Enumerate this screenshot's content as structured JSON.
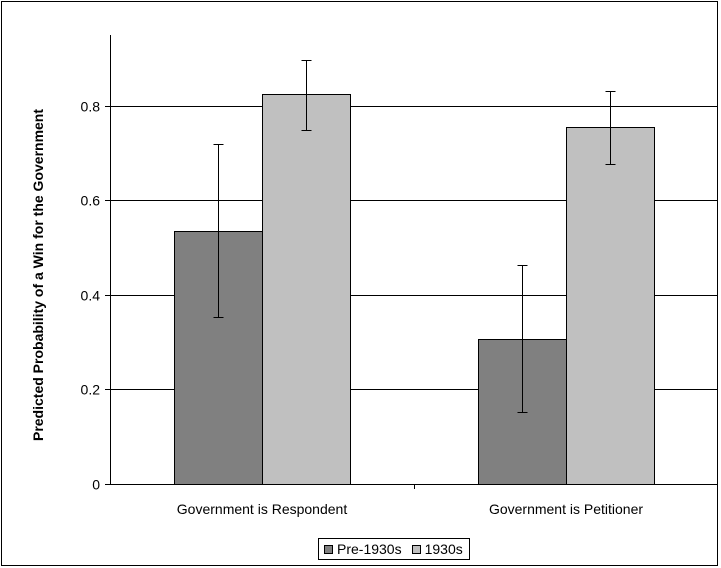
{
  "chart_data": {
    "type": "bar",
    "title": "",
    "xlabel": "",
    "ylabel": "Predicted Probability of a Win for the Government",
    "categories": [
      "Government is Respondent",
      "Government is Petitioner"
    ],
    "series": [
      {
        "name": "Pre-1930s",
        "color": "#808080",
        "values": [
          0.535,
          0.307
        ],
        "error_low": [
          0.353,
          0.152
        ],
        "error_high": [
          0.719,
          0.463
        ]
      },
      {
        "name": "1930s",
        "color": "#c0c0c0",
        "values": [
          0.825,
          0.755
        ],
        "error_low": [
          0.75,
          0.678
        ],
        "error_high": [
          0.898,
          0.832
        ]
      }
    ],
    "ylim": [
      0,
      0.95
    ],
    "yticks": [
      0,
      0.2,
      0.4,
      0.6,
      0.8
    ],
    "ytick_labels": [
      "0",
      "0.2",
      "0.4",
      "0.6",
      "0.8"
    ],
    "grid": true,
    "legend_position": "bottom-center"
  }
}
